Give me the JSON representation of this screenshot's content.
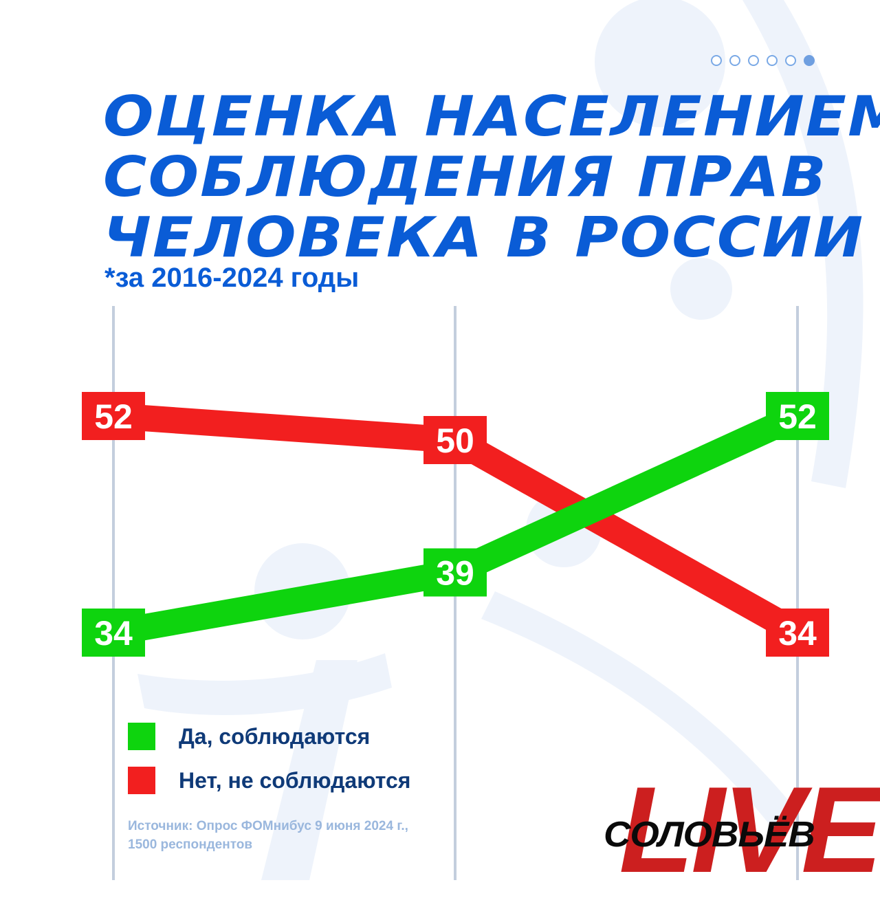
{
  "header": {
    "title_lines": [
      "ОЦЕНКА НАСЕЛЕНИЕМ",
      "СОБЛЮДЕНИЯ ПРАВ",
      "ЧЕЛОВЕКА В РОССИИ"
    ],
    "subtitle": "*за 2016-2024 годы",
    "pagination": {
      "total": 6,
      "active": 6
    }
  },
  "colors": {
    "title": "#0a5cd6",
    "yes": "#0ed40e",
    "no": "#f21f1f",
    "grid": "#c3cedd",
    "bg_figure": "#eef3fb"
  },
  "chart_data": {
    "type": "line",
    "title": "ОЦЕНКА НАСЕЛЕНИЕМ СОБЛЮДЕНИЯ ПРАВ ЧЕЛОВЕКА В РОССИИ",
    "subtitle": "*за 2016-2024 годы",
    "x": [
      0,
      1,
      2
    ],
    "ylim": [
      30,
      55
    ],
    "grid": true,
    "legend_position": "bottom-left",
    "series": [
      {
        "name": "Да, соблюдаются",
        "color": "#0ed40e",
        "values": [
          34,
          39,
          52
        ]
      },
      {
        "name": "Нет, не соблюдаются",
        "color": "#f21f1f",
        "values": [
          52,
          50,
          34
        ]
      }
    ]
  },
  "legend": {
    "items": [
      {
        "label": "Да, соблюдаются",
        "color": "#0ed40e"
      },
      {
        "label": "Нет, не соблюдаются",
        "color": "#f21f1f"
      }
    ]
  },
  "source": {
    "line1": "Источник: Опрос ФОМнибус 9 июня 2024 г.,",
    "line2": "1500 респондентов"
  },
  "logo": {
    "name": "СОЛОВЬЁВ",
    "live": "LIVE"
  }
}
